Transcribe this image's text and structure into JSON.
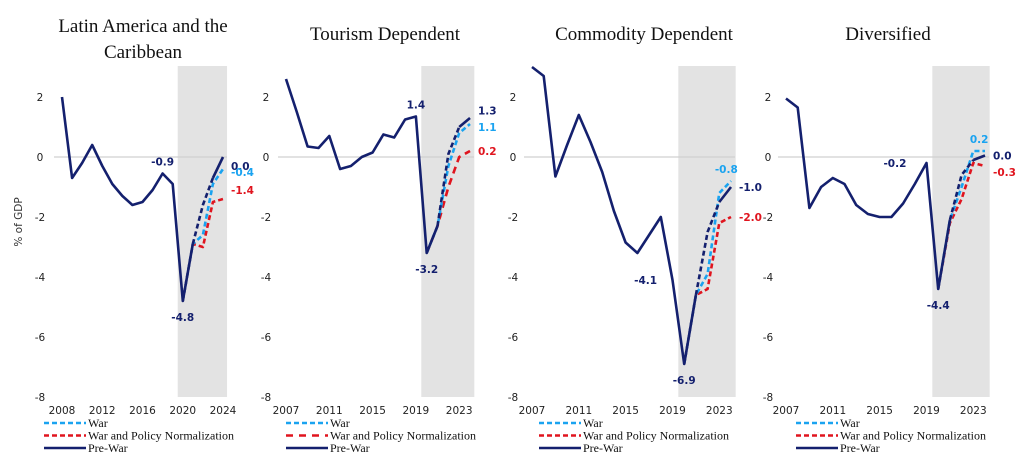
{
  "legend": {
    "items": [
      {
        "key": "war",
        "label": "War"
      },
      {
        "key": "war_policy",
        "label": "War and Policy Normalization"
      },
      {
        "key": "prewar",
        "label": "Pre-War"
      }
    ]
  },
  "colors": {
    "prewar": "#14206e",
    "war": "#1aa3f0",
    "war_policy": "#e0141e",
    "shade": "#e3e3e3",
    "zero_line": "#d0d0d0"
  },
  "chart_data": [
    {
      "type": "line",
      "title_lines": [
        "Latin America and the",
        "Caribbean"
      ],
      "xlabel": "",
      "ylabel": "% of GDP",
      "ylim": [
        -8,
        3
      ],
      "yticks": [
        2,
        0,
        -2,
        -4,
        -6,
        -8
      ],
      "xlim": [
        2008,
        2024
      ],
      "xticks": [
        2008,
        2012,
        2016,
        2020,
        2024
      ],
      "shaded_region": [
        2019.5,
        2024.4
      ],
      "grid": false,
      "legend_position": "bottom-left",
      "series": [
        {
          "name": "Pre-War",
          "key": "prewar",
          "style": "solid",
          "x": [
            2008,
            2009,
            2010,
            2011,
            2012,
            2013,
            2014,
            2015,
            2016,
            2017,
            2018,
            2019,
            2020,
            2021
          ],
          "values": [
            2.0,
            -0.7,
            -0.2,
            0.4,
            -0.3,
            -0.9,
            -1.3,
            -1.6,
            -1.5,
            -1.1,
            -0.55,
            -0.9,
            -4.8,
            -2.9
          ]
        },
        {
          "name": "Pre-War projection",
          "key": "prewar",
          "style": "dashed",
          "x": [
            2021,
            2022,
            2023
          ],
          "values": [
            -2.9,
            -1.6,
            -0.7
          ]
        },
        {
          "name": "Pre-War end",
          "key": "prewar",
          "style": "solid",
          "x": [
            2023,
            2024
          ],
          "values": [
            -0.7,
            0.0
          ]
        },
        {
          "name": "War",
          "key": "war",
          "style": "dashed",
          "x": [
            2020,
            2021,
            2022,
            2023,
            2024
          ],
          "values": [
            -4.8,
            -2.9,
            -2.6,
            -0.9,
            -0.4
          ]
        },
        {
          "name": "War and Policy Normalization",
          "key": "war_policy",
          "style": "dashed",
          "x": [
            2020,
            2021,
            2022,
            2023,
            2024
          ],
          "values": [
            -4.8,
            -2.9,
            -3.0,
            -1.5,
            -1.4
          ]
        }
      ],
      "annotations": [
        {
          "text": "-0.9",
          "x": 2018,
          "y": -0.55,
          "key": "prewar",
          "anchor": "above"
        },
        {
          "text": "-4.8",
          "x": 2020,
          "y": -4.8,
          "key": "prewar",
          "anchor": "below"
        },
        {
          "text": "0.0",
          "x": 2024,
          "y": 0.0,
          "key": "prewar",
          "anchor": "right",
          "dy": -0.3
        },
        {
          "text": "-0.4",
          "x": 2024,
          "y": -0.4,
          "key": "war",
          "anchor": "right",
          "dy": -0.1
        },
        {
          "text": "-1.4",
          "x": 2024,
          "y": -1.4,
          "key": "war_policy",
          "anchor": "right",
          "dy": 0.3
        }
      ]
    },
    {
      "type": "line",
      "title_lines": [
        "Tourism Dependent"
      ],
      "xlabel": "",
      "ylabel": "",
      "ylim": [
        -8,
        3
      ],
      "yticks": [
        2,
        0,
        -2,
        -4,
        -6,
        -8
      ],
      "xlim": [
        2007,
        2024
      ],
      "xticks": [
        2007,
        2011,
        2015,
        2019,
        2023
      ],
      "shaded_region": [
        2019.5,
        2024.4
      ],
      "grid": false,
      "legend_position": "bottom-left",
      "series": [
        {
          "name": "Pre-War",
          "key": "prewar",
          "style": "solid",
          "x": [
            2007,
            2008,
            2009,
            2010,
            2011,
            2012,
            2013,
            2014,
            2015,
            2016,
            2017,
            2018,
            2019,
            2020,
            2021
          ],
          "values": [
            2.6,
            1.5,
            0.35,
            0.3,
            0.7,
            -0.4,
            -0.3,
            0.0,
            0.15,
            0.75,
            0.65,
            1.25,
            1.35,
            -3.2,
            -2.3
          ]
        },
        {
          "name": "Pre-War projection",
          "key": "prewar",
          "style": "dashed",
          "x": [
            2021,
            2022,
            2023
          ],
          "values": [
            -2.3,
            0.1,
            1.0
          ]
        },
        {
          "name": "Pre-War end",
          "key": "prewar",
          "style": "solid",
          "x": [
            2023,
            2024
          ],
          "values": [
            1.0,
            1.3
          ]
        },
        {
          "name": "War",
          "key": "war",
          "style": "dashed",
          "x": [
            2020,
            2021,
            2022,
            2023,
            2024
          ],
          "values": [
            -3.2,
            -2.3,
            -0.3,
            0.8,
            1.1
          ]
        },
        {
          "name": "War and Policy Normalization",
          "key": "war_policy",
          "style": "dashed",
          "x": [
            2020,
            2021,
            2022,
            2023,
            2024
          ],
          "values": [
            -3.2,
            -2.3,
            -1.0,
            0.0,
            0.2
          ]
        }
      ],
      "annotations": [
        {
          "text": "1.4",
          "x": 2019,
          "y": 1.35,
          "key": "prewar",
          "anchor": "above"
        },
        {
          "text": "-3.2",
          "x": 2020,
          "y": -3.2,
          "key": "prewar",
          "anchor": "below"
        },
        {
          "text": "1.3",
          "x": 2024,
          "y": 1.3,
          "key": "prewar",
          "anchor": "right",
          "dy": 0.25
        },
        {
          "text": "1.1",
          "x": 2024,
          "y": 1.1,
          "key": "war",
          "anchor": "right",
          "dy": -0.1
        },
        {
          "text": "0.2",
          "x": 2024,
          "y": 0.2,
          "key": "war_policy",
          "anchor": "right",
          "dy": 0.0
        }
      ]
    },
    {
      "type": "line",
      "title_lines": [
        "Commodity Dependent"
      ],
      "xlabel": "",
      "ylabel": "",
      "ylim": [
        -8,
        3
      ],
      "yticks": [
        2,
        0,
        -2,
        -4,
        -6,
        -8
      ],
      "xlim": [
        2007,
        2024
      ],
      "xticks": [
        2007,
        2011,
        2015,
        2019,
        2023
      ],
      "shaded_region": [
        2019.5,
        2024.4
      ],
      "grid": false,
      "legend_position": "bottom-left",
      "series": [
        {
          "name": "Pre-War",
          "key": "prewar",
          "style": "solid",
          "x": [
            2007,
            2008,
            2009,
            2010,
            2011,
            2012,
            2013,
            2014,
            2015,
            2016,
            2017,
            2018,
            2019,
            2020,
            2021
          ],
          "values": [
            3.0,
            2.7,
            -0.65,
            0.4,
            1.4,
            0.5,
            -0.5,
            -1.8,
            -2.85,
            -3.2,
            -2.6,
            -2.0,
            -4.1,
            -6.9,
            -4.6
          ]
        },
        {
          "name": "Pre-War projection",
          "key": "prewar",
          "style": "dashed",
          "x": [
            2021,
            2022,
            2023
          ],
          "values": [
            -4.6,
            -2.5,
            -1.5
          ]
        },
        {
          "name": "Pre-War end",
          "key": "prewar",
          "style": "solid",
          "x": [
            2023,
            2024
          ],
          "values": [
            -1.5,
            -1.0
          ]
        },
        {
          "name": "War",
          "key": "war",
          "style": "dashed",
          "x": [
            2020,
            2021,
            2022,
            2023,
            2024
          ],
          "values": [
            -6.9,
            -4.6,
            -3.9,
            -1.2,
            -0.8
          ]
        },
        {
          "name": "War and Policy Normalization",
          "key": "war_policy",
          "style": "dashed",
          "x": [
            2020,
            2021,
            2022,
            2023,
            2024
          ],
          "values": [
            -6.9,
            -4.6,
            -4.4,
            -2.2,
            -2.0
          ]
        }
      ],
      "annotations": [
        {
          "text": "-4.1",
          "x": 2018.2,
          "y": -4.1,
          "key": "prewar",
          "anchor": "left"
        },
        {
          "text": "-6.9",
          "x": 2020,
          "y": -6.9,
          "key": "prewar",
          "anchor": "below"
        },
        {
          "text": "-0.8",
          "x": 2023.6,
          "y": -0.8,
          "key": "war",
          "anchor": "above"
        },
        {
          "text": "-1.0",
          "x": 2024,
          "y": -1.0,
          "key": "prewar",
          "anchor": "right",
          "dy": 0.0
        },
        {
          "text": "-2.0",
          "x": 2024,
          "y": -2.0,
          "key": "war_policy",
          "anchor": "right",
          "dy": 0.0
        }
      ]
    },
    {
      "type": "line",
      "title_lines": [
        "Diversified"
      ],
      "xlabel": "",
      "ylabel": "",
      "ylim": [
        -8,
        3
      ],
      "yticks": [
        2,
        0,
        -2,
        -4,
        -6,
        -8
      ],
      "xlim": [
        2007,
        2024
      ],
      "xticks": [
        2007,
        2011,
        2015,
        2019,
        2023
      ],
      "shaded_region": [
        2019.5,
        2024.4
      ],
      "grid": false,
      "legend_position": "bottom-left",
      "series": [
        {
          "name": "Pre-War",
          "key": "prewar",
          "style": "solid",
          "x": [
            2007,
            2008,
            2009,
            2010,
            2011,
            2012,
            2013,
            2014,
            2015,
            2016,
            2017,
            2018,
            2019,
            2020,
            2021
          ],
          "values": [
            1.95,
            1.65,
            -1.7,
            -1.0,
            -0.7,
            -0.9,
            -1.6,
            -1.9,
            -2.0,
            -2.0,
            -1.55,
            -0.9,
            -0.2,
            -4.4,
            -2.1
          ]
        },
        {
          "name": "Pre-War projection",
          "key": "prewar",
          "style": "dashed",
          "x": [
            2021,
            2022,
            2023
          ],
          "values": [
            -2.1,
            -0.6,
            -0.1
          ]
        },
        {
          "name": "Pre-War end",
          "key": "prewar",
          "style": "solid",
          "x": [
            2023,
            2024
          ],
          "values": [
            -0.1,
            0.05
          ]
        },
        {
          "name": "War",
          "key": "war",
          "style": "dashed",
          "x": [
            2020,
            2021,
            2022,
            2023,
            2024
          ],
          "values": [
            -4.4,
            -2.1,
            -1.0,
            0.2,
            0.2
          ]
        },
        {
          "name": "War and Policy Normalization",
          "key": "war_policy",
          "style": "dashed",
          "x": [
            2020,
            2021,
            2022,
            2023,
            2024
          ],
          "values": [
            -4.4,
            -2.2,
            -1.4,
            -0.2,
            -0.3
          ]
        }
      ],
      "annotations": [
        {
          "text": "-0.2",
          "x": 2017.8,
          "y": -0.2,
          "key": "prewar",
          "anchor": "left"
        },
        {
          "text": "-4.4",
          "x": 2020,
          "y": -4.4,
          "key": "prewar",
          "anchor": "below"
        },
        {
          "text": "0.2",
          "x": 2023.5,
          "y": 0.2,
          "key": "war",
          "anchor": "above"
        },
        {
          "text": "0.0",
          "x": 2024,
          "y": 0.0,
          "key": "prewar",
          "anchor": "right",
          "dy": 0.05
        },
        {
          "text": "-0.3",
          "x": 2024,
          "y": -0.3,
          "key": "war_policy",
          "anchor": "right",
          "dy": -0.2
        }
      ]
    }
  ]
}
